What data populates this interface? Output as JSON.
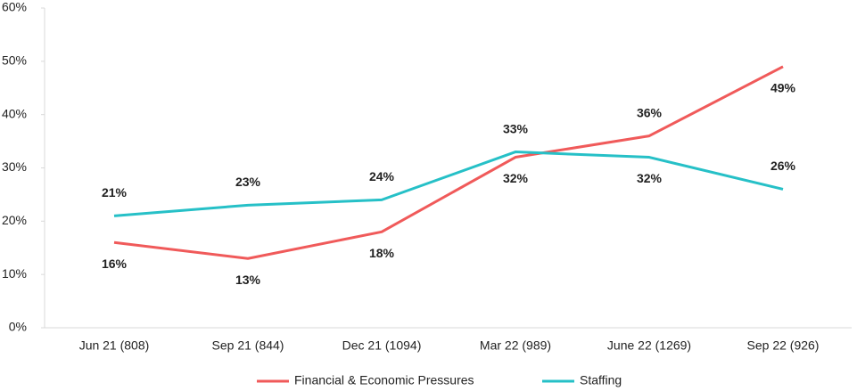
{
  "chart_data": {
    "type": "line",
    "categories": [
      "Jun 21 (808)",
      "Sep 21 (844)",
      "Dec 21 (1094)",
      "Mar 22 (989)",
      "June 22 (1269)",
      "Sep 22 (926)"
    ],
    "series": [
      {
        "name": "Financial & Economic Pressures",
        "color": "#f05a5a",
        "values": [
          16,
          13,
          18,
          32,
          36,
          49
        ],
        "value_labels": [
          "16%",
          "13%",
          "18%",
          "32%",
          "36%",
          "49%"
        ]
      },
      {
        "name": "Staffing",
        "color": "#26c0c7",
        "values": [
          21,
          23,
          24,
          33,
          32,
          26
        ],
        "value_labels": [
          "21%",
          "23%",
          "24%",
          "33%",
          "32%",
          "26%"
        ]
      }
    ],
    "ylim": [
      0,
      60
    ],
    "yticks": [
      {
        "value": 0,
        "label": "0%"
      },
      {
        "value": 10,
        "label": "10%"
      },
      {
        "value": 20,
        "label": "20%"
      },
      {
        "value": 30,
        "label": "30%"
      },
      {
        "value": 40,
        "label": "40%"
      },
      {
        "value": 50,
        "label": "50%"
      },
      {
        "value": 60,
        "label": "60%"
      }
    ],
    "grid": false,
    "legend": "bottom"
  }
}
